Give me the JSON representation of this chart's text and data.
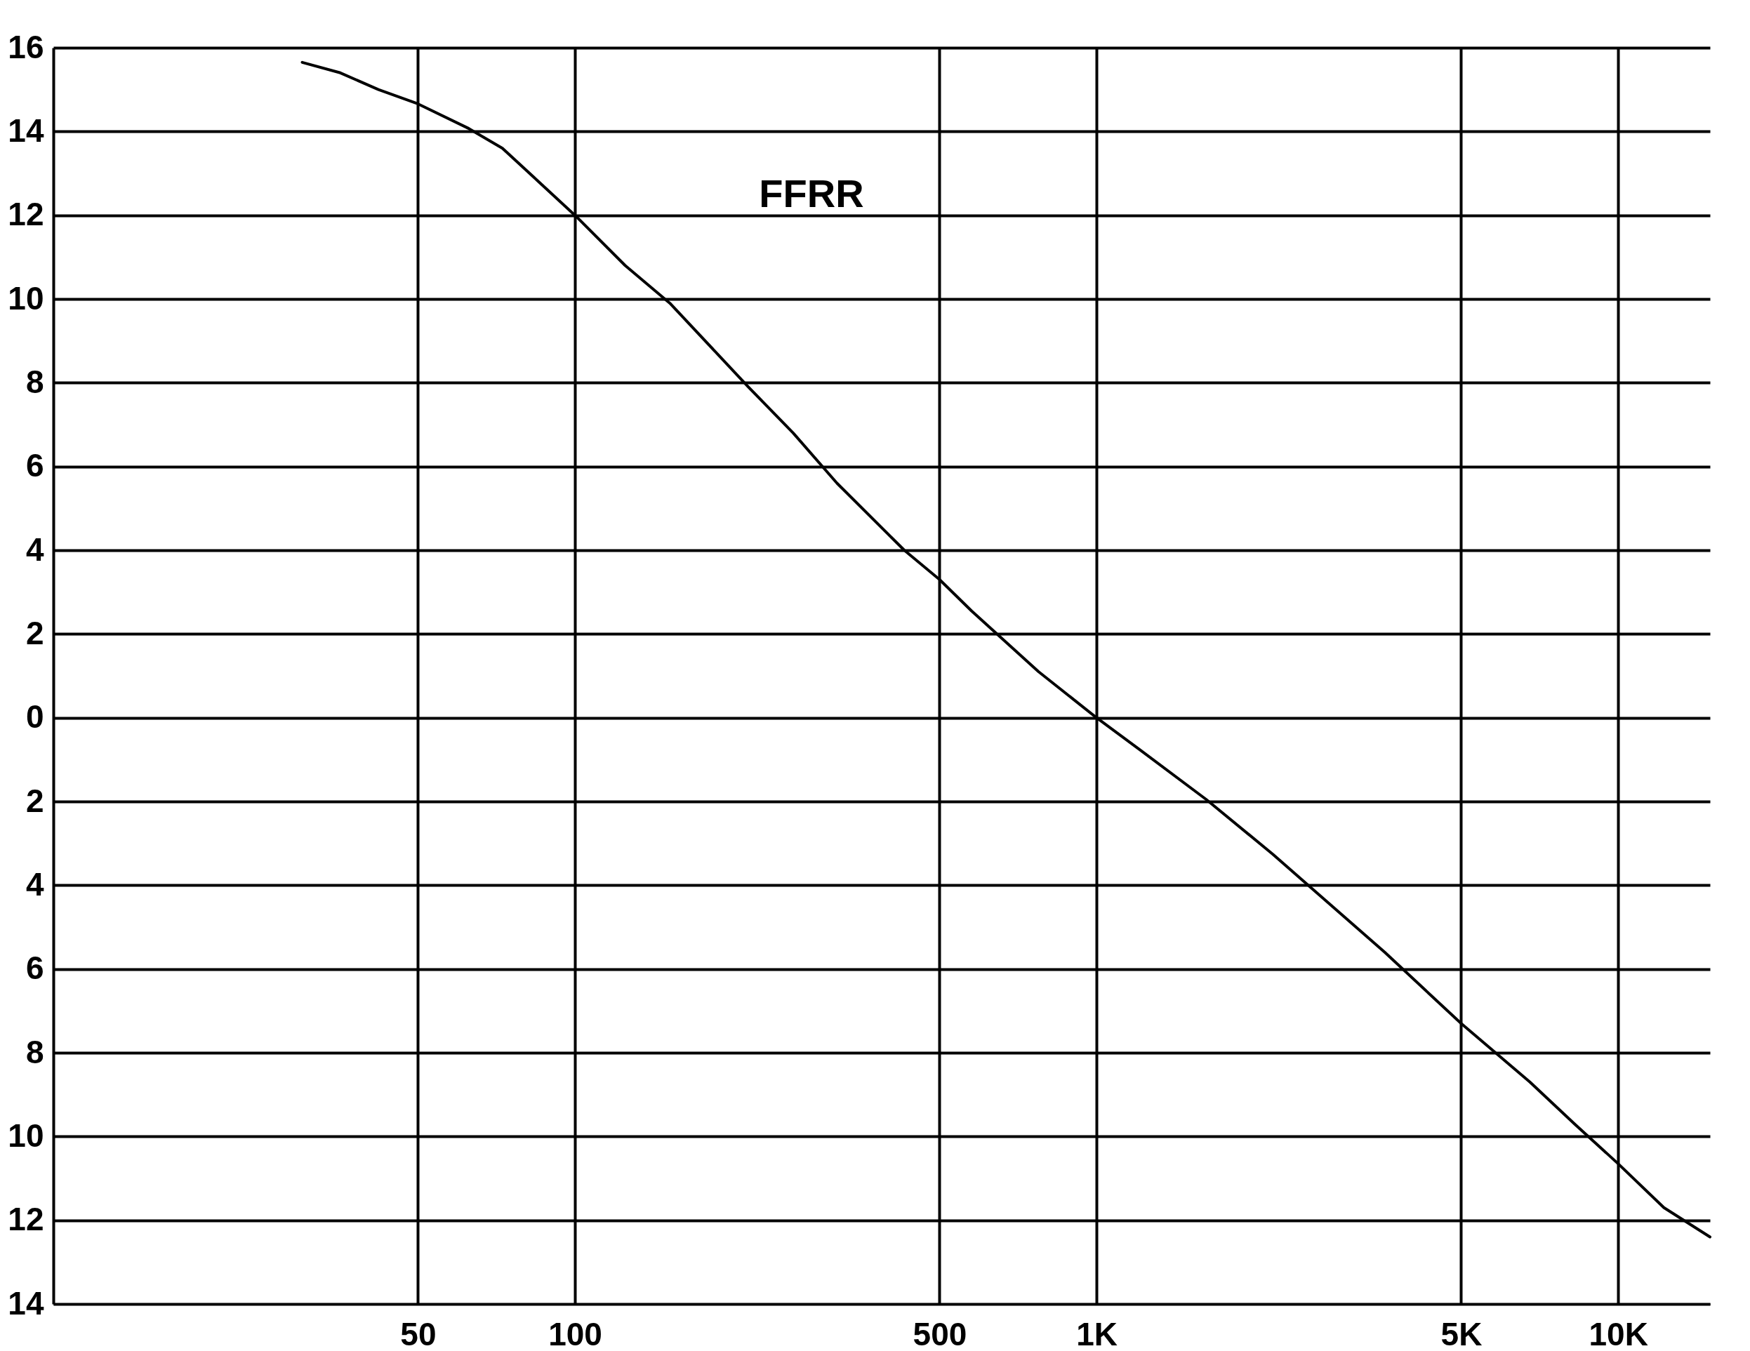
{
  "chart_data": {
    "type": "line",
    "annotations": [
      "FFRR"
    ],
    "x": [
      30,
      35.5,
      42,
      50,
      62.6,
      72.6,
      100,
      124.8,
      152,
      215,
      262,
      318,
      428,
      500,
      576,
      774,
      1000,
      1206,
      1622,
      2178,
      2655,
      3568,
      5000,
      6774,
      8250,
      10000,
      12240,
      15000
    ],
    "series": [
      {
        "color": "#000000",
        "values": [
          15.65,
          15.4,
          15.0,
          14.66,
          14.07,
          13.6,
          12.0,
          10.8,
          9.9,
          7.9,
          6.8,
          5.6,
          4.0,
          3.3,
          2.55,
          1.1,
          0,
          -0.75,
          -1.95,
          -3.26,
          -4.2,
          -5.6,
          -7.3,
          -8.7,
          -9.7,
          -10.65,
          -11.7,
          -12.4
        ]
      }
    ],
    "log": "x",
    "xlim": [
      10,
      15000
    ],
    "xticks": [
      50,
      100,
      500,
      {
        "value": 1000,
        "label": "1K"
      },
      {
        "value": 5000,
        "label": "5K"
      },
      {
        "value": 10000,
        "label": "10K"
      }
    ],
    "ylim": [
      -14,
      16
    ],
    "yticks": [
      {
        "value": -14,
        "label": "14"
      },
      {
        "value": -12,
        "label": "12"
      },
      {
        "value": -10,
        "label": "10"
      },
      {
        "value": -8,
        "label": "8"
      },
      {
        "value": -6,
        "label": "6"
      },
      {
        "value": -4,
        "label": "4"
      },
      {
        "value": -2,
        "label": "2"
      },
      0,
      2,
      4,
      6,
      8,
      10,
      12,
      14,
      16
    ],
    "grid": true,
    "marker": "none",
    "line_style": "solid"
  }
}
